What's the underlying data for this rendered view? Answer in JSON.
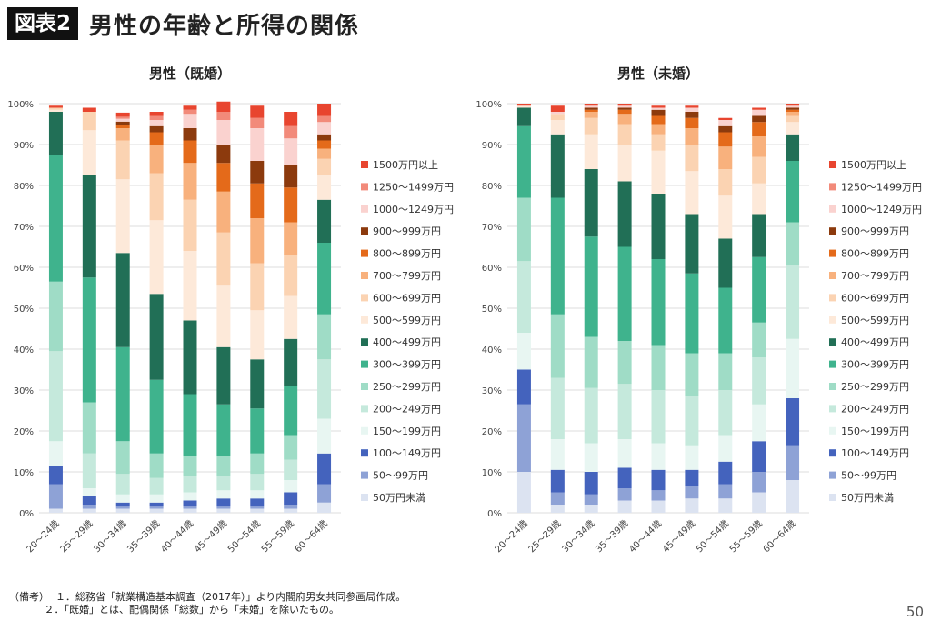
{
  "header": {
    "figure_label": "図表2",
    "title": "男性の年齢と所得の関係"
  },
  "notes": {
    "prefix": "（備考）",
    "items": [
      "１．総務省「就業構造基本調査（2017年）」より内閣府男女共同参画局作成。",
      "２．「既婚」とは、配偶関係「総数」から「未婚」を除いたもの。"
    ]
  },
  "page_number": "50",
  "colors": {
    "series": [
      "#dce3f1",
      "#8ea2d6",
      "#4463bd",
      "#e8f6f2",
      "#c5e9dc",
      "#9fdcc6",
      "#3fb38d",
      "#216f56",
      "#fde9d9",
      "#fbd3b2",
      "#f8b17d",
      "#e46a1a",
      "#8c3a0d",
      "#fad2cf",
      "#f28a7a",
      "#e8452f"
    ]
  },
  "chart_data": [
    {
      "type": "bar",
      "stacked": true,
      "title": "男性（既婚）",
      "categories": [
        "20～24歳",
        "25～29歳",
        "30～34歳",
        "35～39歳",
        "40～44歳",
        "45～49歳",
        "50～54歳",
        "55～59歳",
        "60～64歳"
      ],
      "ylim": [
        0,
        100
      ],
      "yticks": [
        "0%",
        "10%",
        "20%",
        "30%",
        "40%",
        "50%",
        "60%",
        "70%",
        "80%",
        "90%",
        "100%"
      ],
      "legend_position": "right",
      "series": [
        {
          "name": "50万円未満",
          "values": [
            1,
            1,
            1,
            1,
            1,
            1,
            1,
            1,
            2.5
          ]
        },
        {
          "name": "50～99万円",
          "values": [
            6,
            1,
            0.5,
            0.5,
            0.5,
            0.5,
            0.5,
            1,
            4.5
          ]
        },
        {
          "name": "100～149万円",
          "values": [
            4.5,
            2,
            1,
            1,
            1.5,
            2,
            2,
            3,
            7.5
          ]
        },
        {
          "name": "150～199万円",
          "values": [
            6,
            2,
            2,
            2,
            2,
            2,
            2,
            3,
            8.5
          ]
        },
        {
          "name": "200～249万円",
          "values": [
            22,
            8.5,
            5,
            4,
            4,
            3.5,
            4,
            5,
            14.5
          ]
        },
        {
          "name": "250～299万円",
          "values": [
            17,
            12.5,
            8,
            6,
            5,
            5,
            5,
            6,
            11
          ]
        },
        {
          "name": "300～399万円",
          "values": [
            31,
            30.5,
            23,
            18,
            15,
            12.5,
            11,
            12,
            17.5
          ]
        },
        {
          "name": "400～499万円",
          "values": [
            10.5,
            25,
            23,
            21,
            18,
            14,
            12,
            11.5,
            10.5
          ]
        },
        {
          "name": "500～599万円",
          "values": [
            0.5,
            11,
            18,
            18,
            17,
            15,
            12,
            10.5,
            6
          ]
        },
        {
          "name": "600～699万円",
          "values": [
            0.5,
            4.5,
            9.5,
            11.5,
            12.5,
            13,
            11.5,
            10,
            4
          ]
        },
        {
          "name": "700～799万円",
          "values": [
            0,
            0,
            3,
            7,
            9,
            10,
            11,
            8,
            2.5
          ]
        },
        {
          "name": "800～899万円",
          "values": [
            0,
            0,
            0.8,
            3,
            5.5,
            7,
            8.5,
            8.5,
            2
          ]
        },
        {
          "name": "900～999万円",
          "values": [
            0,
            0,
            0.8,
            1.5,
            3,
            4.5,
            5.5,
            5.5,
            1.5
          ]
        },
        {
          "name": "1000～1249万円",
          "values": [
            0,
            0,
            0.7,
            1.5,
            3.5,
            6,
            8,
            6.5,
            3
          ]
        },
        {
          "name": "1250～1499万円",
          "values": [
            0,
            0,
            0.5,
            1,
            1,
            2,
            2.5,
            3,
            1.5
          ]
        },
        {
          "name": "1500万円以上",
          "values": [
            0.5,
            1,
            1,
            1,
            1,
            2.5,
            3,
            3.5,
            3
          ]
        }
      ]
    },
    {
      "type": "bar",
      "stacked": true,
      "title": "男性（未婚）",
      "categories": [
        "20～24歳",
        "25～29歳",
        "30～34歳",
        "35～39歳",
        "40～44歳",
        "45～49歳",
        "50～54歳",
        "55～59歳",
        "60～64歳"
      ],
      "ylim": [
        0,
        100
      ],
      "yticks": [
        "0%",
        "10%",
        "20%",
        "30%",
        "40%",
        "50%",
        "60%",
        "70%",
        "80%",
        "90%",
        "100%"
      ],
      "legend_position": "right",
      "series": [
        {
          "name": "50万円未満",
          "values": [
            10,
            2,
            2,
            3,
            3,
            3.5,
            3.5,
            5,
            8
          ]
        },
        {
          "name": "50～99万円",
          "values": [
            16.5,
            3,
            2.5,
            3,
            2.5,
            3,
            3.5,
            5,
            8.5
          ]
        },
        {
          "name": "100～149万円",
          "values": [
            8.5,
            5.5,
            5.5,
            5,
            5,
            4,
            5.5,
            7.5,
            11.5
          ]
        },
        {
          "name": "150～199万円",
          "values": [
            9,
            7.5,
            7,
            7,
            6.5,
            6,
            6.5,
            9,
            14.5
          ]
        },
        {
          "name": "200～249万円",
          "values": [
            17.5,
            15,
            13.5,
            13.5,
            13,
            12,
            11,
            11.5,
            18
          ]
        },
        {
          "name": "250～299万円",
          "values": [
            15.5,
            15.5,
            12.5,
            10.5,
            11,
            10.5,
            9,
            8.5,
            10.5
          ]
        },
        {
          "name": "300～399万円",
          "values": [
            17.5,
            28.5,
            24.5,
            23,
            21,
            19.5,
            16,
            16,
            15
          ]
        },
        {
          "name": "400～499万円",
          "values": [
            4.5,
            15.5,
            16.5,
            16,
            16,
            14.5,
            12,
            10.5,
            6.5
          ]
        },
        {
          "name": "500～599万円",
          "values": [
            0.5,
            3.5,
            8.5,
            9,
            10.5,
            10.5,
            10.5,
            7.5,
            3
          ]
        },
        {
          "name": "600～699万円",
          "values": [
            0,
            1.5,
            4,
            5,
            4,
            6.5,
            6.5,
            6.5,
            1.5
          ]
        },
        {
          "name": "700～799万円",
          "values": [
            0,
            0,
            1.5,
            2.5,
            2.5,
            4,
            5.5,
            5,
            1
          ]
        },
        {
          "name": "800～899万円",
          "values": [
            0,
            0,
            0.5,
            1,
            2,
            2.5,
            3.5,
            3.5,
            0.5
          ]
        },
        {
          "name": "900～999万円",
          "values": [
            0,
            0,
            0.5,
            0.5,
            1.5,
            1.5,
            1.5,
            1.5,
            0.5
          ]
        },
        {
          "name": "1000～1249万円",
          "values": [
            0,
            0.5,
            0.5,
            0.5,
            0.5,
            1,
            1.5,
            1.5,
            0.5
          ]
        },
        {
          "name": "1250～1499万円",
          "values": [
            0,
            0,
            0,
            0,
            0,
            0,
            0,
            0,
            0
          ]
        },
        {
          "name": "1500万円以上",
          "values": [
            0.5,
            1.5,
            0.5,
            0.5,
            0.5,
            0.5,
            0.5,
            0.5,
            0.5
          ]
        }
      ]
    }
  ]
}
